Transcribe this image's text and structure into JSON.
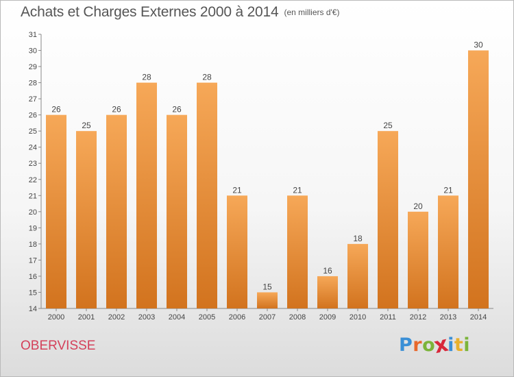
{
  "header": {
    "title": "Achats et Charges Externes 2000 à 2014",
    "unit": "(en milliers d'€)"
  },
  "footer": {
    "commune": "OBERVISSE",
    "brand_letters": [
      "P",
      "r",
      "o",
      "x",
      "i",
      "t",
      "i"
    ],
    "brand_colors": [
      "#3a8fd6",
      "#e8682c",
      "#7bb43a",
      "#d8283a",
      "#3a8fd6",
      "#e8b02c",
      "#7bb43a"
    ]
  },
  "colors": {
    "bar_top": "#f6a858",
    "bar_bottom": "#d2731e",
    "axis": "#888888",
    "text": "#444444",
    "commune": "#d4405a"
  },
  "chart_data": {
    "type": "bar",
    "categories": [
      "2000",
      "2001",
      "2002",
      "2003",
      "2004",
      "2005",
      "2006",
      "2007",
      "2008",
      "2009",
      "2010",
      "2011",
      "2012",
      "2013",
      "2014"
    ],
    "values": [
      26,
      25,
      26,
      28,
      26,
      28,
      21,
      15,
      21,
      16,
      18,
      25,
      20,
      21,
      30
    ],
    "ylim": [
      14,
      31
    ],
    "yticks": [
      14,
      15,
      16,
      17,
      18,
      19,
      20,
      21,
      22,
      23,
      24,
      25,
      26,
      27,
      28,
      29,
      30,
      31
    ],
    "grid": false,
    "legend": "none"
  }
}
